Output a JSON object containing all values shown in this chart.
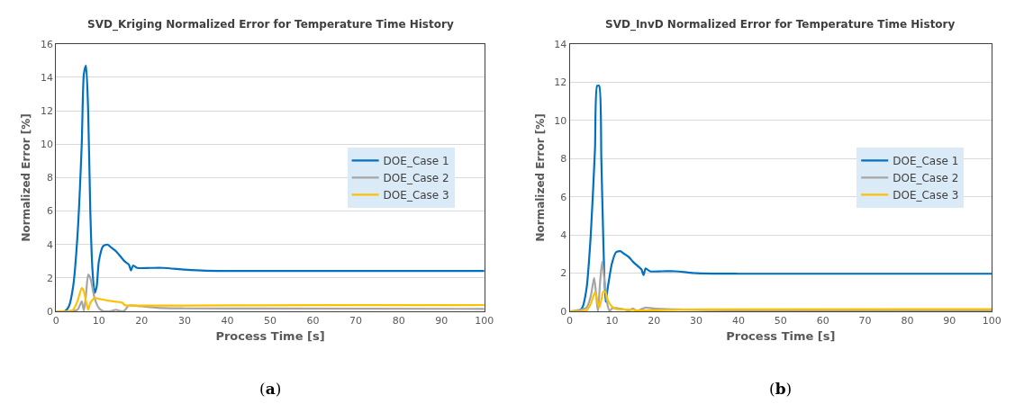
{
  "chart_data": [
    {
      "type": "line",
      "title": "SVD_Kriging Normalized Error for Temperature Time History",
      "xlabel": "Process Time [s]",
      "ylabel": "Normalized Error [%]",
      "xlim": [
        0,
        100
      ],
      "xticks": [
        0,
        10,
        20,
        30,
        40,
        50,
        60,
        70,
        80,
        90,
        100
      ],
      "ylim": [
        0,
        16
      ],
      "yticks": [
        0,
        2,
        4,
        6,
        8,
        10,
        12,
        14,
        16
      ],
      "grid": "y",
      "legend": "right",
      "marker": "none",
      "line_style": "solid",
      "annotations": [
        "(a)"
      ],
      "series": [
        {
          "name": "DOE_Case 1",
          "color": "#0070c0",
          "x": [
            0,
            2,
            3,
            4,
            5,
            6,
            6.5,
            7,
            7.5,
            8,
            8.5,
            9,
            9.5,
            10,
            11,
            12,
            13,
            14,
            15,
            16,
            17,
            17.5,
            18,
            19,
            22,
            25,
            30,
            35,
            40,
            60,
            100
          ],
          "values": [
            0,
            0,
            0.3,
            1.5,
            4.5,
            10,
            14.2,
            14.7,
            12,
            6,
            2.5,
            1.1,
            1.5,
            3,
            3.9,
            4.0,
            3.8,
            3.6,
            3.3,
            3.0,
            2.8,
            2.45,
            2.75,
            2.6,
            2.6,
            2.6,
            2.5,
            2.43,
            2.42,
            2.42,
            2.42
          ]
        },
        {
          "name": "DOE_Case 2",
          "color": "#a5a5a5",
          "x": [
            0,
            5,
            6,
            6.5,
            7,
            7.5,
            8,
            9,
            10,
            11,
            13,
            14,
            15,
            16,
            17,
            20,
            25,
            30,
            50,
            100
          ],
          "values": [
            0,
            0.1,
            0.6,
            0.05,
            1.0,
            2.2,
            2.0,
            0.8,
            0.2,
            0.02,
            0.03,
            0.1,
            0.02,
            0.05,
            0.35,
            0.3,
            0.2,
            0.18,
            0.17,
            0.15
          ]
        },
        {
          "name": "DOE_Case 3",
          "color": "#ffc000",
          "x": [
            0,
            3,
            4,
            5,
            6,
            6.5,
            7,
            7.5,
            8,
            9,
            10,
            12,
            14,
            15.5,
            16,
            17,
            20,
            30,
            60,
            100
          ],
          "values": [
            0,
            0,
            0.1,
            0.6,
            1.4,
            1.2,
            0.6,
            0.1,
            0.5,
            0.8,
            0.75,
            0.65,
            0.58,
            0.52,
            0.38,
            0.35,
            0.35,
            0.35,
            0.37,
            0.38
          ]
        }
      ]
    },
    {
      "type": "line",
      "title": "SVD_InvD Normalized Error for Temperature Time History",
      "xlabel": "Process Time [s]",
      "ylabel": "Normalized Error [%]",
      "xlim": [
        0,
        100
      ],
      "xticks": [
        0,
        10,
        20,
        30,
        40,
        50,
        60,
        70,
        80,
        90,
        100
      ],
      "ylim": [
        0,
        14
      ],
      "yticks": [
        0,
        2,
        4,
        6,
        8,
        10,
        12,
        14
      ],
      "grid": "y",
      "legend": "right",
      "marker": "none",
      "line_style": "solid",
      "annotations": [
        "(b)"
      ],
      "series": [
        {
          "name": "DOE_Case 1",
          "color": "#0070c0",
          "x": [
            0,
            2,
            3,
            4,
            5,
            6,
            6.5,
            7,
            7.5,
            8,
            8.5,
            9,
            10,
            11,
            12,
            13,
            14,
            15,
            16,
            17,
            17.5,
            18,
            19,
            22,
            25,
            30,
            40,
            100
          ],
          "values": [
            0,
            0,
            0.2,
            1.2,
            4,
            8.5,
            11.8,
            11.8,
            8,
            3.5,
            0.5,
            1.2,
            2.5,
            3.1,
            3.15,
            3.0,
            2.85,
            2.6,
            2.4,
            2.2,
            1.9,
            2.25,
            2.1,
            2.1,
            2.1,
            2.0,
            1.97,
            1.97
          ]
        },
        {
          "name": "DOE_Case 2",
          "color": "#a5a5a5",
          "x": [
            0,
            4,
            5,
            5.8,
            6.3,
            6.7,
            7.2,
            7.7,
            8.3,
            9,
            9.5,
            10,
            11,
            13,
            14,
            15,
            16,
            17,
            18,
            20,
            40,
            100
          ],
          "values": [
            0,
            0.2,
            0.8,
            1.75,
            0.8,
            0,
            1.5,
            2.6,
            1.5,
            0.3,
            0.02,
            0.15,
            0.18,
            0.1,
            0.05,
            0.15,
            0.02,
            0.12,
            0.2,
            0.15,
            0.05,
            0.05
          ]
        },
        {
          "name": "DOE_Case 3",
          "color": "#ffc000",
          "x": [
            0,
            4,
            5,
            6,
            6.5,
            7,
            7.5,
            8,
            8.5,
            9,
            10,
            11,
            13,
            15,
            16,
            18,
            22,
            30,
            100
          ],
          "values": [
            0,
            0.05,
            0.4,
            1.0,
            0.6,
            0.2,
            0.6,
            1.05,
            1.0,
            0.6,
            0.25,
            0.12,
            0.1,
            0.08,
            0.05,
            0.05,
            0.07,
            0.1,
            0.12
          ]
        }
      ]
    }
  ]
}
